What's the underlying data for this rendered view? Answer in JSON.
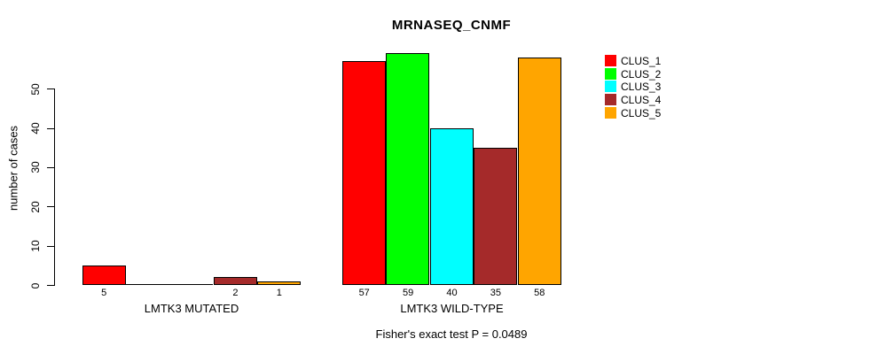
{
  "title": "MRNASEQ_CNMF",
  "annotation": "Fisher's exact test P = 0.0489",
  "ylabel": "number of cases",
  "chart_data": {
    "type": "bar",
    "title": "MRNASEQ_CNMF",
    "xlabel": "",
    "ylabel": "number of cases",
    "ylim": [
      0,
      59
    ],
    "yticks": [
      0,
      10,
      20,
      30,
      40,
      50
    ],
    "grid": false,
    "legend_position": "right-outside-top",
    "legend": [
      {
        "label": "CLUS_1",
        "color": "#FF0000"
      },
      {
        "label": "CLUS_2",
        "color": "#00FF00"
      },
      {
        "label": "CLUS_3",
        "color": "#00FFFF"
      },
      {
        "label": "CLUS_4",
        "color": "#A52A2A"
      },
      {
        "label": "CLUS_5",
        "color": "#FFA500"
      }
    ],
    "groups": [
      {
        "label": "LMTK3 MUTATED",
        "values": [
          5,
          0,
          0,
          2,
          1
        ]
      },
      {
        "label": "LMTK3 WILD-TYPE",
        "values": [
          57,
          59,
          40,
          35,
          58
        ]
      }
    ],
    "bar_value_labels": "shown below each nonzero bar",
    "annotation": "Fisher's exact test P = 0.0489"
  },
  "colors": {
    "foreground": "#000000",
    "background": "#FFFFFF"
  }
}
